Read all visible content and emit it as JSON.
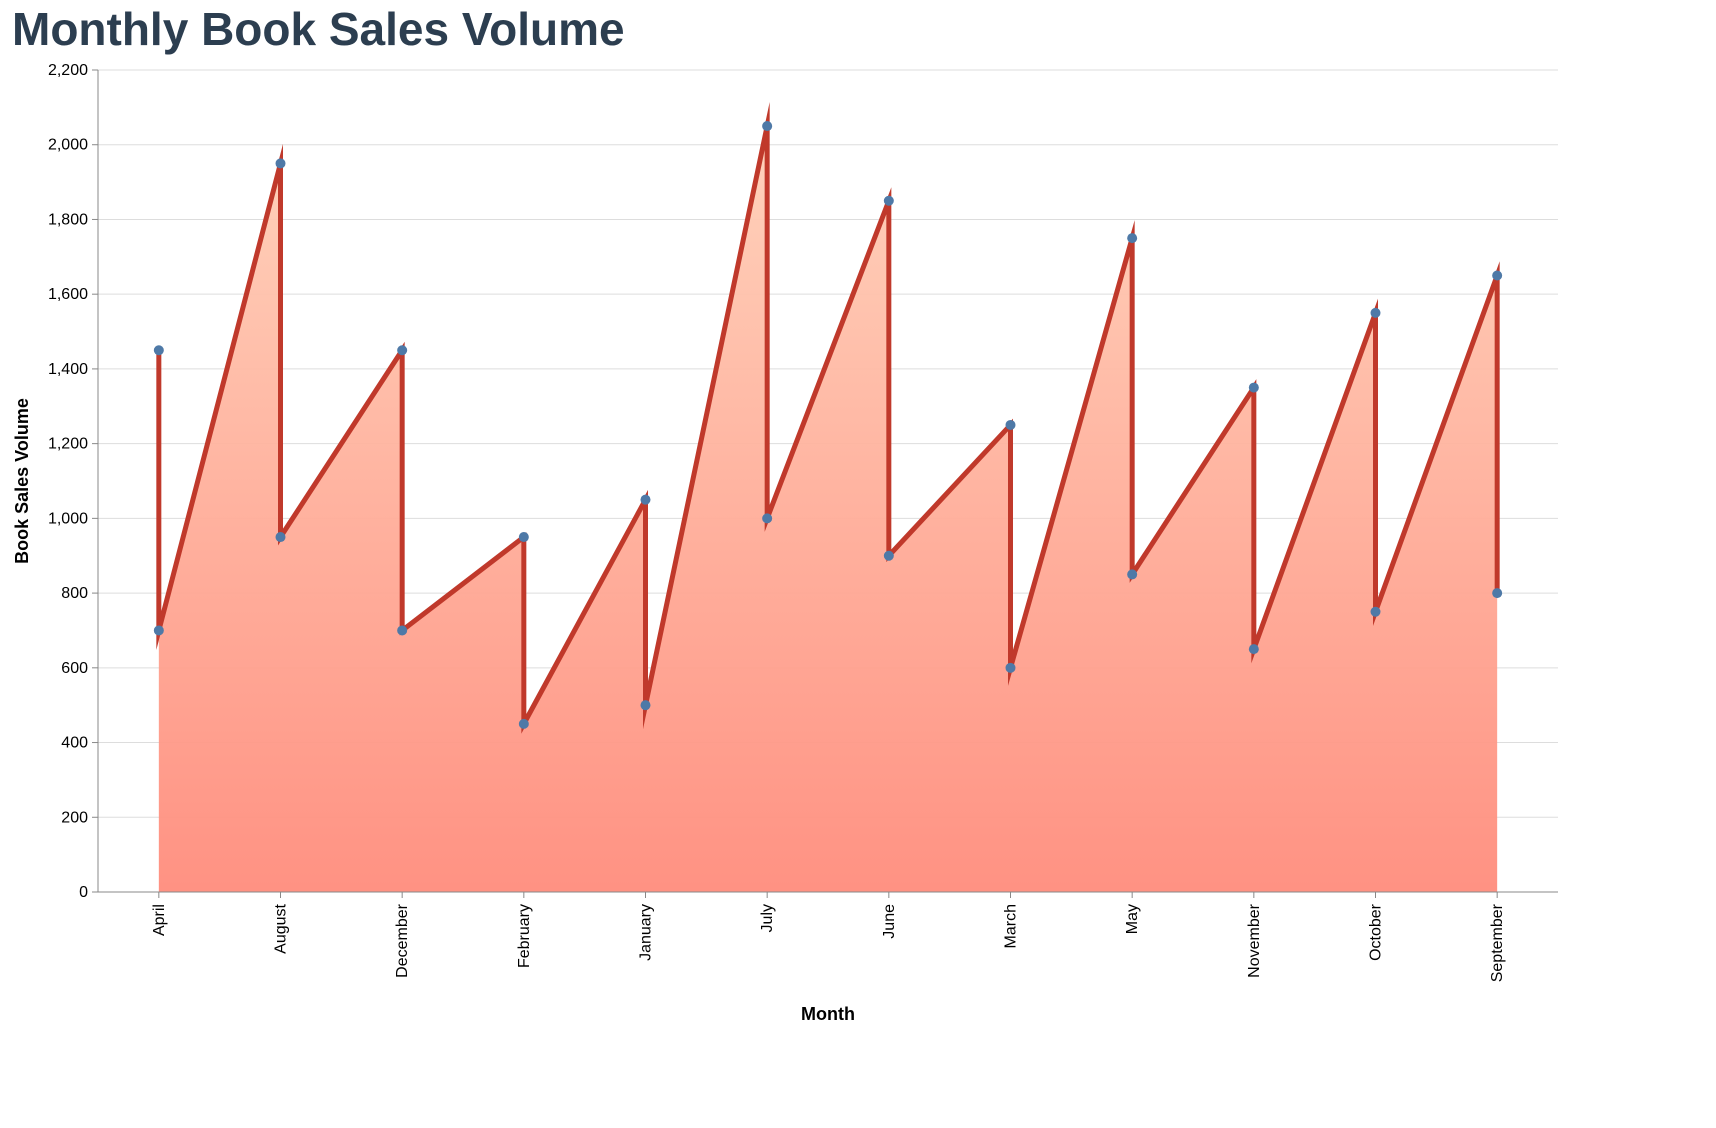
{
  "title": "Monthly Book Sales Volume",
  "chart_data": {
    "type": "area",
    "title": "Monthly Book Sales Volume",
    "xlabel": "Month",
    "ylabel": "Book Sales Volume",
    "ylim": [
      0,
      2200
    ],
    "y_ticks": [
      "0",
      "200",
      "400",
      "600",
      "800",
      "1,000",
      "1,200",
      "1,400",
      "1,600",
      "1,800",
      "2,000",
      "2,200"
    ],
    "categories": [
      "April",
      "August",
      "December",
      "February",
      "January",
      "July",
      "June",
      "March",
      "May",
      "November",
      "October",
      "September"
    ],
    "points": [
      {
        "month": "April",
        "value": 1450
      },
      {
        "month": "April",
        "value": 700
      },
      {
        "month": "August",
        "value": 1950
      },
      {
        "month": "August",
        "value": 950
      },
      {
        "month": "December",
        "value": 1450
      },
      {
        "month": "December",
        "value": 700
      },
      {
        "month": "February",
        "value": 950
      },
      {
        "month": "February",
        "value": 450
      },
      {
        "month": "January",
        "value": 1050
      },
      {
        "month": "January",
        "value": 500
      },
      {
        "month": "July",
        "value": 2050
      },
      {
        "month": "July",
        "value": 1000
      },
      {
        "month": "June",
        "value": 1850
      },
      {
        "month": "June",
        "value": 900
      },
      {
        "month": "March",
        "value": 1250
      },
      {
        "month": "March",
        "value": 600
      },
      {
        "month": "May",
        "value": 1750
      },
      {
        "month": "May",
        "value": 850
      },
      {
        "month": "November",
        "value": 1350
      },
      {
        "month": "November",
        "value": 650
      },
      {
        "month": "October",
        "value": 1550
      },
      {
        "month": "October",
        "value": 750
      },
      {
        "month": "September",
        "value": 1650
      },
      {
        "month": "September",
        "value": 800
      }
    ],
    "grid": true,
    "colors": {
      "line": "#c0392b",
      "point": "#4e79a7",
      "area_top": "#ffd0b8",
      "area_bottom": "#ff8c7c",
      "grid": "#dddddd",
      "axis": "#888888",
      "title": "#2c3e50"
    }
  }
}
